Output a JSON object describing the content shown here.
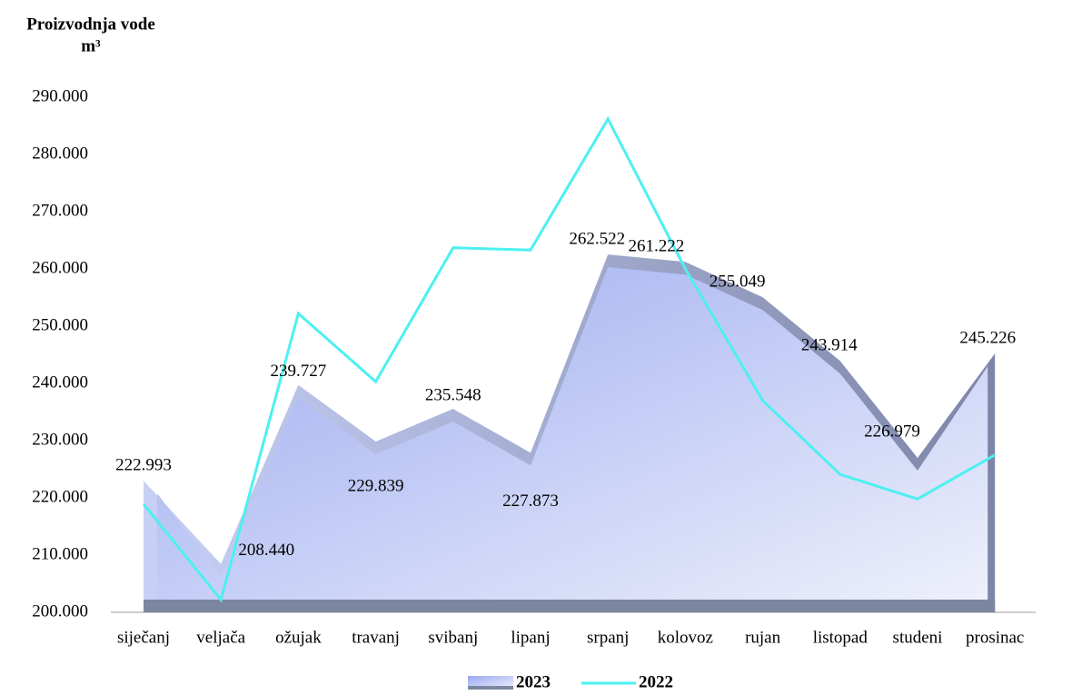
{
  "chart_data": {
    "type": "area_line",
    "title": "Proizvodnja vode",
    "unit": "m³",
    "categories": [
      "siječanj",
      "veljača",
      "ožujak",
      "travanj",
      "svibanj",
      "lipanj",
      "srpanj",
      "kolovoz",
      "rujan",
      "listopad",
      "studeni",
      "prosinac"
    ],
    "series": [
      {
        "name": "2023",
        "color": "#a9b8ee",
        "values": [
          222993,
          208440,
          239727,
          229839,
          235548,
          227873,
          262522,
          261222,
          255049,
          243914,
          226979,
          245226
        ],
        "value_labels": [
          "222.993",
          "208.440",
          "239.727",
          "229.839",
          "235.548",
          "227.873",
          "262.522",
          "261.222",
          "255.049",
          "243.914",
          "226.979",
          "245.226"
        ]
      },
      {
        "name": "2022",
        "color": "#4df0f0",
        "values": [
          218900,
          202200,
          252200,
          240300,
          263700,
          263300,
          286200,
          260000,
          237000,
          224100,
          219800,
          227500
        ]
      }
    ],
    "ylim": [
      200000,
      290000
    ],
    "yticks": [
      {
        "value": 200000,
        "label": "200.000"
      },
      {
        "value": 210000,
        "label": "210.000"
      },
      {
        "value": 220000,
        "label": "220.000"
      },
      {
        "value": 230000,
        "label": "230.000"
      },
      {
        "value": 240000,
        "label": "240.000"
      },
      {
        "value": 250000,
        "label": "250.000"
      },
      {
        "value": 260000,
        "label": "260.000"
      },
      {
        "value": 270000,
        "label": "270.000"
      },
      {
        "value": 280000,
        "label": "280.000"
      },
      {
        "value": 290000,
        "label": "290.000"
      }
    ]
  }
}
